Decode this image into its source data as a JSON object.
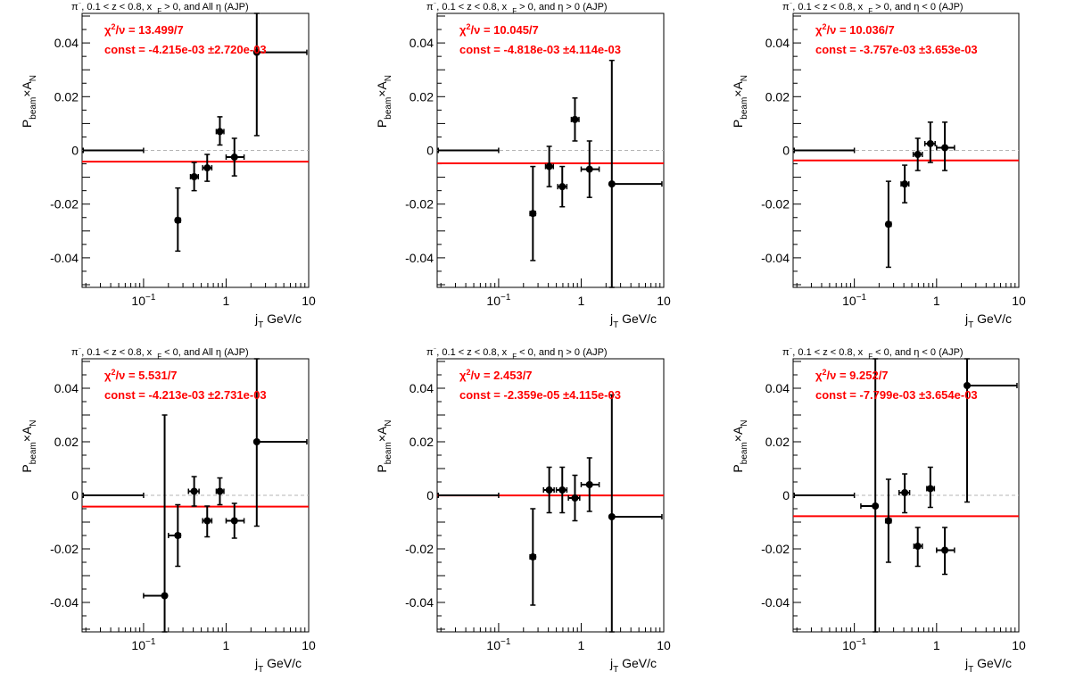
{
  "chart_data": [
    {
      "type": "scatter",
      "title": "π⁻, 0.1 < z < 0.8, x_F > 0, and All η (AJP)",
      "title_parts": [
        "π",
        "⁻",
        ", 0.1 < z < 0.8, x",
        "F",
        " > 0, and All  η (AJP)"
      ],
      "xlabel_parts": [
        "j",
        "T",
        " GeV/c"
      ],
      "ylabel_parts": [
        "P",
        "beam",
        "×A",
        "N"
      ],
      "xscale": "log",
      "xlim": [
        0.018,
        10
      ],
      "ylim": [
        -0.051,
        0.051
      ],
      "xticks": [
        {
          "v": 0.1,
          "b": "10",
          "e": "−1"
        },
        {
          "v": 1,
          "b": "1"
        },
        {
          "v": 10,
          "b": "10"
        }
      ],
      "yticks": [
        {
          "v": -0.04,
          "t": "-0.04"
        },
        {
          "v": -0.02,
          "t": "-0.02"
        },
        {
          "v": 0,
          "t": "0"
        },
        {
          "v": 0.02,
          "t": "0.02"
        },
        {
          "v": 0.04,
          "t": "0.04"
        }
      ],
      "fit": {
        "chi2_label": "χ²/ν = 13.499/7",
        "chi2_parts": [
          "χ",
          "2",
          "/ν = 13.499/7"
        ],
        "const_label": "const = -4.215e-03  ±2.720e-03",
        "const": -0.004215,
        "color": "#ff0000"
      },
      "points": [
        {
          "x": 0.0186,
          "y": 0.0,
          "xlo": 0.0186,
          "xhi": 0.1,
          "ylo": 0.0,
          "yhi": 0.0,
          "marker": false
        },
        {
          "x": 0.26,
          "y": -0.026,
          "xlo": 0.245,
          "xhi": 0.28,
          "ylo": -0.0375,
          "yhi": -0.014
        },
        {
          "x": 0.41,
          "y": -0.0098,
          "xlo": 0.37,
          "xhi": 0.46,
          "ylo": -0.015,
          "yhi": -0.0045
        },
        {
          "x": 0.59,
          "y": -0.0065,
          "xlo": 0.52,
          "xhi": 0.67,
          "ylo": -0.0115,
          "yhi": -0.0015
        },
        {
          "x": 0.84,
          "y": 0.007,
          "xlo": 0.76,
          "xhi": 0.94,
          "ylo": 0.002,
          "yhi": 0.0125
        },
        {
          "x": 1.26,
          "y": -0.0025,
          "xlo": 1.0,
          "xhi": 1.65,
          "ylo": -0.0095,
          "yhi": 0.0045
        },
        {
          "x": 2.35,
          "y": 0.0365,
          "xlo": 2.3,
          "xhi": 9.5,
          "ylo": 0.0055,
          "yhi": 0.051
        }
      ]
    },
    {
      "type": "scatter",
      "title": "π⁻, 0.1 < z < 0.8, x_F > 0, and η > 0 (AJP)",
      "title_parts": [
        "π",
        "⁻",
        ", 0.1 < z < 0.8, x",
        "F",
        " > 0, and  η > 0 (AJP)"
      ],
      "xlabel_parts": [
        "j",
        "T",
        " GeV/c"
      ],
      "ylabel_parts": [
        "P",
        "beam",
        "×A",
        "N"
      ],
      "xscale": "log",
      "xlim": [
        0.018,
        10
      ],
      "ylim": [
        -0.051,
        0.051
      ],
      "xticks": [
        {
          "v": 0.1,
          "b": "10",
          "e": "−1"
        },
        {
          "v": 1,
          "b": "1"
        },
        {
          "v": 10,
          "b": "10"
        }
      ],
      "yticks": [
        {
          "v": -0.04,
          "t": "-0.04"
        },
        {
          "v": -0.02,
          "t": "-0.02"
        },
        {
          "v": 0,
          "t": "0"
        },
        {
          "v": 0.02,
          "t": "0.02"
        },
        {
          "v": 0.04,
          "t": "0.04"
        }
      ],
      "fit": {
        "chi2_label": "χ²/ν = 10.045/7",
        "chi2_parts": [
          "χ",
          "2",
          "/ν = 10.045/7"
        ],
        "const_label": "const = -4.818e-03  ±4.114e-03",
        "const": -0.004818,
        "color": "#ff0000"
      },
      "points": [
        {
          "x": 0.0186,
          "y": 0.0,
          "xlo": 0.0186,
          "xhi": 0.1,
          "ylo": 0.0,
          "yhi": 0.0,
          "marker": false
        },
        {
          "x": 0.26,
          "y": -0.0235,
          "xlo": 0.24,
          "xhi": 0.28,
          "ylo": -0.041,
          "yhi": -0.006
        },
        {
          "x": 0.41,
          "y": -0.006,
          "xlo": 0.37,
          "xhi": 0.46,
          "ylo": -0.0135,
          "yhi": 0.0015
        },
        {
          "x": 0.59,
          "y": -0.0135,
          "xlo": 0.52,
          "xhi": 0.67,
          "ylo": -0.021,
          "yhi": -0.006
        },
        {
          "x": 0.84,
          "y": 0.0115,
          "xlo": 0.76,
          "xhi": 0.94,
          "ylo": 0.0035,
          "yhi": 0.0195
        },
        {
          "x": 1.26,
          "y": -0.007,
          "xlo": 1.0,
          "xhi": 1.65,
          "ylo": -0.0175,
          "yhi": 0.0035
        },
        {
          "x": 2.35,
          "y": -0.0125,
          "xlo": 2.3,
          "xhi": 9.5,
          "ylo": -0.051,
          "yhi": 0.0335
        }
      ]
    },
    {
      "type": "scatter",
      "title": "π⁻, 0.1 < z < 0.8, x_F > 0, and η < 0 (AJP)",
      "title_parts": [
        "π",
        "⁻",
        ", 0.1 < z < 0.8, x",
        "F",
        " > 0, and  η < 0 (AJP)"
      ],
      "xlabel_parts": [
        "j",
        "T",
        " GeV/c"
      ],
      "ylabel_parts": [
        "P",
        "beam",
        "×A",
        "N"
      ],
      "xscale": "log",
      "xlim": [
        0.018,
        10
      ],
      "ylim": [
        -0.051,
        0.051
      ],
      "xticks": [
        {
          "v": 0.1,
          "b": "10",
          "e": "−1"
        },
        {
          "v": 1,
          "b": "1"
        },
        {
          "v": 10,
          "b": "10"
        }
      ],
      "yticks": [
        {
          "v": -0.04,
          "t": "-0.04"
        },
        {
          "v": -0.02,
          "t": "-0.02"
        },
        {
          "v": 0,
          "t": "0"
        },
        {
          "v": 0.02,
          "t": "0.02"
        },
        {
          "v": 0.04,
          "t": "0.04"
        }
      ],
      "fit": {
        "chi2_label": "χ²/ν = 10.036/7",
        "chi2_parts": [
          "χ",
          "2",
          "/ν = 10.036/7"
        ],
        "const_label": "const = -3.757e-03  ±3.653e-03",
        "const": -0.003757,
        "color": "#ff0000"
      },
      "points": [
        {
          "x": 0.0186,
          "y": 0.0,
          "xlo": 0.0186,
          "xhi": 0.1,
          "ylo": 0.0,
          "yhi": 0.0,
          "marker": false
        },
        {
          "x": 0.26,
          "y": -0.0275,
          "xlo": 0.245,
          "xhi": 0.28,
          "ylo": -0.0435,
          "yhi": -0.0115
        },
        {
          "x": 0.41,
          "y": -0.0125,
          "xlo": 0.37,
          "xhi": 0.46,
          "ylo": -0.0195,
          "yhi": -0.0055
        },
        {
          "x": 0.59,
          "y": -0.0015,
          "xlo": 0.52,
          "xhi": 0.67,
          "ylo": -0.0075,
          "yhi": 0.0045
        },
        {
          "x": 0.84,
          "y": 0.0025,
          "xlo": 0.72,
          "xhi": 0.96,
          "ylo": -0.0045,
          "yhi": 0.0105
        },
        {
          "x": 1.26,
          "y": 0.001,
          "xlo": 1.0,
          "xhi": 1.65,
          "ylo": -0.0075,
          "yhi": 0.0105
        }
      ]
    },
    {
      "type": "scatter",
      "title": "π⁻, 0.1 < z < 0.8, x_F < 0, and All η (AJP)",
      "title_parts": [
        "π",
        "⁻",
        ", 0.1 < z < 0.8, x",
        "F",
        " < 0, and All  η (AJP)"
      ],
      "xlabel_parts": [
        "j",
        "T",
        " GeV/c"
      ],
      "ylabel_parts": [
        "P",
        "beam",
        "×A",
        "N"
      ],
      "xscale": "log",
      "xlim": [
        0.018,
        10
      ],
      "ylim": [
        -0.051,
        0.051
      ],
      "xticks": [
        {
          "v": 0.1,
          "b": "10",
          "e": "−1"
        },
        {
          "v": 1,
          "b": "1"
        },
        {
          "v": 10,
          "b": "10"
        }
      ],
      "yticks": [
        {
          "v": -0.04,
          "t": "-0.04"
        },
        {
          "v": -0.02,
          "t": "-0.02"
        },
        {
          "v": 0,
          "t": "0"
        },
        {
          "v": 0.02,
          "t": "0.02"
        },
        {
          "v": 0.04,
          "t": "0.04"
        }
      ],
      "fit": {
        "chi2_label": "χ²/ν = 5.531/7",
        "chi2_parts": [
          "χ",
          "2",
          "/ν = 5.531/7"
        ],
        "const_label": "const = -4.213e-03  ±2.731e-03",
        "const": -0.004213,
        "color": "#ff0000"
      },
      "points": [
        {
          "x": 0.0186,
          "y": 0.0,
          "xlo": 0.0186,
          "xhi": 0.1,
          "ylo": 0.0,
          "yhi": 0.0,
          "marker": false
        },
        {
          "x": 0.18,
          "y": -0.0375,
          "xlo": 0.1,
          "xhi": 0.19,
          "ylo": -0.051,
          "yhi": 0.03
        },
        {
          "x": 0.26,
          "y": -0.015,
          "xlo": 0.2,
          "xhi": 0.28,
          "ylo": -0.0265,
          "yhi": -0.0035
        },
        {
          "x": 0.41,
          "y": 0.0015,
          "xlo": 0.35,
          "xhi": 0.47,
          "ylo": -0.004,
          "yhi": 0.007
        },
        {
          "x": 0.59,
          "y": -0.0095,
          "xlo": 0.52,
          "xhi": 0.67,
          "ylo": -0.0155,
          "yhi": -0.004
        },
        {
          "x": 0.84,
          "y": 0.0015,
          "xlo": 0.76,
          "xhi": 0.94,
          "ylo": -0.0035,
          "yhi": 0.0065
        },
        {
          "x": 1.26,
          "y": -0.0095,
          "xlo": 1.0,
          "xhi": 1.65,
          "ylo": -0.016,
          "yhi": -0.003
        },
        {
          "x": 2.35,
          "y": 0.02,
          "xlo": 2.3,
          "xhi": 9.5,
          "ylo": -0.0115,
          "yhi": 0.051
        }
      ]
    },
    {
      "type": "scatter",
      "title": "π⁻, 0.1 < z < 0.8, x_F < 0, and η > 0 (AJP)",
      "title_parts": [
        "π",
        "⁻",
        ", 0.1 < z < 0.8, x",
        "F",
        " < 0, and  η > 0 (AJP)"
      ],
      "xlabel_parts": [
        "j",
        "T",
        " GeV/c"
      ],
      "ylabel_parts": [
        "P",
        "beam",
        "×A",
        "N"
      ],
      "xscale": "log",
      "xlim": [
        0.018,
        10
      ],
      "ylim": [
        -0.051,
        0.051
      ],
      "xticks": [
        {
          "v": 0.1,
          "b": "10",
          "e": "−1"
        },
        {
          "v": 1,
          "b": "1"
        },
        {
          "v": 10,
          "b": "10"
        }
      ],
      "yticks": [
        {
          "v": -0.04,
          "t": "-0.04"
        },
        {
          "v": -0.02,
          "t": "-0.02"
        },
        {
          "v": 0,
          "t": "0"
        },
        {
          "v": 0.02,
          "t": "0.02"
        },
        {
          "v": 0.04,
          "t": "0.04"
        }
      ],
      "fit": {
        "chi2_label": "χ²/ν = 2.453/7",
        "chi2_parts": [
          "χ",
          "2",
          "/ν = 2.453/7"
        ],
        "const_label": "const = -2.359e-05  ±4.115e-03",
        "const": -2.359e-05,
        "color": "#ff0000"
      },
      "points": [
        {
          "x": 0.0186,
          "y": 0.0,
          "xlo": 0.0186,
          "xhi": 0.1,
          "ylo": 0.0,
          "yhi": 0.0,
          "marker": false
        },
        {
          "x": 0.26,
          "y": -0.023,
          "xlo": 0.24,
          "xhi": 0.28,
          "ylo": -0.041,
          "yhi": -0.005
        },
        {
          "x": 0.41,
          "y": 0.002,
          "xlo": 0.35,
          "xhi": 0.47,
          "ylo": -0.0065,
          "yhi": 0.0105
        },
        {
          "x": 0.59,
          "y": 0.002,
          "xlo": 0.5,
          "xhi": 0.67,
          "ylo": -0.0065,
          "yhi": 0.0105
        },
        {
          "x": 0.84,
          "y": -0.001,
          "xlo": 0.7,
          "xhi": 0.96,
          "ylo": -0.0095,
          "yhi": 0.0075
        },
        {
          "x": 1.26,
          "y": 0.004,
          "xlo": 1.0,
          "xhi": 1.65,
          "ylo": -0.006,
          "yhi": 0.014
        },
        {
          "x": 2.35,
          "y": -0.008,
          "xlo": 2.3,
          "xhi": 9.5,
          "ylo": -0.051,
          "yhi": 0.0375
        }
      ]
    },
    {
      "type": "scatter",
      "title": "π⁻, 0.1 < z < 0.8, x_F < 0, and η < 0 (AJP)",
      "title_parts": [
        "π",
        "⁻",
        ", 0.1 < z < 0.8, x",
        "F",
        " < 0, and  η < 0 (AJP)"
      ],
      "xlabel_parts": [
        "j",
        "T",
        " GeV/c"
      ],
      "ylabel_parts": [
        "P",
        "beam",
        "×A",
        "N"
      ],
      "xscale": "log",
      "xlim": [
        0.018,
        10
      ],
      "ylim": [
        -0.051,
        0.051
      ],
      "xticks": [
        {
          "v": 0.1,
          "b": "10",
          "e": "−1"
        },
        {
          "v": 1,
          "b": "1"
        },
        {
          "v": 10,
          "b": "10"
        }
      ],
      "yticks": [
        {
          "v": -0.04,
          "t": "-0.04"
        },
        {
          "v": -0.02,
          "t": "-0.02"
        },
        {
          "v": 0,
          "t": "0"
        },
        {
          "v": 0.02,
          "t": "0.02"
        },
        {
          "v": 0.04,
          "t": "0.04"
        }
      ],
      "fit": {
        "chi2_label": "χ²/ν = 9.252/7",
        "chi2_parts": [
          "χ",
          "2",
          "/ν = 9.252/7"
        ],
        "const_label": "const = -7.799e-03  ±3.654e-03",
        "const": -0.007799,
        "color": "#ff0000"
      },
      "points": [
        {
          "x": 0.0186,
          "y": 0.0,
          "xlo": 0.0186,
          "xhi": 0.1,
          "ylo": 0.0,
          "yhi": 0.0,
          "marker": false
        },
        {
          "x": 0.18,
          "y": -0.004,
          "xlo": 0.12,
          "xhi": 0.19,
          "ylo": -0.051,
          "yhi": 0.051
        },
        {
          "x": 0.26,
          "y": -0.0095,
          "xlo": 0.24,
          "xhi": 0.28,
          "ylo": -0.025,
          "yhi": 0.006
        },
        {
          "x": 0.41,
          "y": 0.001,
          "xlo": 0.35,
          "xhi": 0.47,
          "ylo": -0.0065,
          "yhi": 0.008
        },
        {
          "x": 0.59,
          "y": -0.019,
          "xlo": 0.53,
          "xhi": 0.67,
          "ylo": -0.0265,
          "yhi": -0.012
        },
        {
          "x": 0.84,
          "y": 0.0025,
          "xlo": 0.76,
          "xhi": 0.94,
          "ylo": -0.0045,
          "yhi": 0.0105
        },
        {
          "x": 1.26,
          "y": -0.0205,
          "xlo": 1.0,
          "xhi": 1.65,
          "ylo": -0.0295,
          "yhi": -0.012
        },
        {
          "x": 2.35,
          "y": 0.041,
          "xlo": 2.3,
          "xhi": 9.5,
          "ylo": -0.0025,
          "yhi": 0.051
        }
      ]
    }
  ]
}
